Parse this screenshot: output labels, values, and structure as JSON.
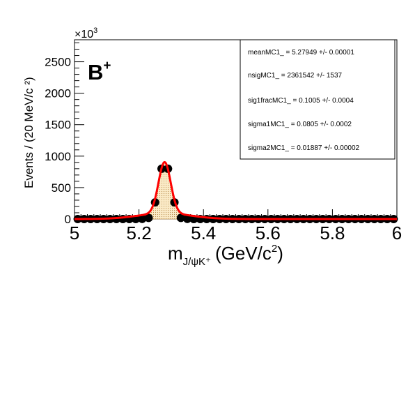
{
  "chart_data": {
    "type": "scatter",
    "title": "",
    "label": "B",
    "label_sup": "+",
    "xlabel_main": "m",
    "xlabel_sub": "J/ψK⁺",
    "xlabel_units": "(GeV/c",
    "xlabel_units_sup": "2",
    "xlabel_units_close": ")",
    "ylabel": "Events / (20 MeV/c ²)",
    "y_exponent_label": "×10",
    "y_exponent_sup": "3",
    "xlim": [
      5,
      6
    ],
    "ylim": [
      0,
      2850
    ],
    "x_ticks": [
      "5",
      "5.2",
      "5.4",
      "5.6",
      "5.8",
      "6"
    ],
    "y_ticks": [
      "0",
      "500",
      "1000",
      "1500",
      "2000",
      "2500"
    ],
    "grid": false,
    "legend": "top-right",
    "series": [
      {
        "kind": "data-points",
        "x": [
          5.01,
          5.03,
          5.05,
          5.07,
          5.09,
          5.11,
          5.13,
          5.15,
          5.17,
          5.19,
          5.21,
          5.23,
          5.25,
          5.27,
          5.29,
          5.31,
          5.33,
          5.35,
          5.37,
          5.39,
          5.41,
          5.43,
          5.45,
          5.47,
          5.49,
          5.51,
          5.53,
          5.55,
          5.57,
          5.59,
          5.61,
          5.63,
          5.65,
          5.67,
          5.69,
          5.71,
          5.73,
          5.75,
          5.77,
          5.79,
          5.81,
          5.83,
          5.85,
          5.87,
          5.89,
          5.91,
          5.93,
          5.95,
          5.97,
          5.99
        ],
        "y": [
          0,
          0,
          0,
          0,
          0,
          0,
          0,
          0,
          0,
          0,
          2,
          18,
          265,
          800,
          800,
          265,
          18,
          2,
          0,
          0,
          0,
          0,
          0,
          0,
          0,
          0,
          0,
          0,
          0,
          0,
          0,
          0,
          0,
          0,
          0,
          0,
          0,
          0,
          0,
          0,
          0,
          0,
          0,
          0,
          0,
          0,
          0,
          0,
          0,
          0
        ]
      },
      {
        "kind": "fit-curve",
        "color": "#ff0000",
        "mean": 5.27949,
        "sigma_narrow": 0.01887,
        "sigma_wide": 0.0805,
        "wide_fraction": 0.1005,
        "peak": 905
      }
    ],
    "stats": [
      "meanMC1_ =  5.27949 +/- 0.00001",
      "nsigMC1_ =  2361542 +/- 1537",
      "sig1fracMC1_ =  0.1005 +/- 0.0004",
      "sigma1MC1_ =  0.0805 +/- 0.0002",
      "sigma2MC1_ =  0.01887 +/- 0.00002"
    ]
  }
}
